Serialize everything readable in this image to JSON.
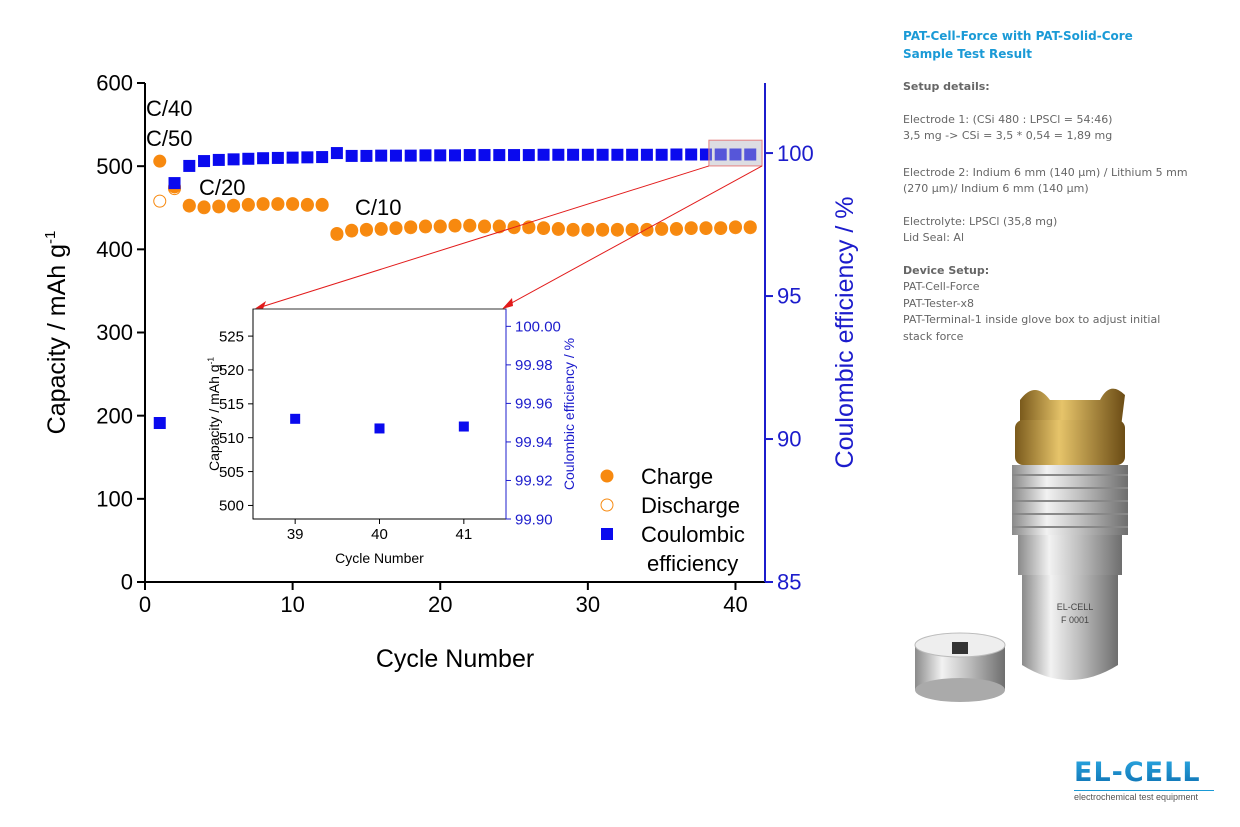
{
  "sidebar": {
    "title1": "PAT-Cell-Force with PAT-Solid-Core",
    "title2": "Sample Test Result",
    "setup_heading": "Setup details:",
    "electrode1_a": "Electrode 1: (CSi 480 : LPSCl = 54:46)",
    "electrode1_b": "3,5 mg -> CSi = 3,5 * 0,54 = 1,89 mg",
    "electrode2_a": "Electrode 2: Indium 6 mm (140 µm) / Lithium 5 mm",
    "electrode2_b": "(270 µm)/ Indium 6 mm (140 µm)",
    "electrolyte": "Electrolyte: LPSCl (35,8 mg)",
    "lid_seal": "Lid Seal: Al",
    "device_heading": "Device Setup:",
    "device1": "PAT-Cell-Force",
    "device2": "PAT-Tester-x8",
    "device3": "PAT-Terminal-1 inside glove box to adjust initial",
    "device4": "stack force"
  },
  "product_label": {
    "brand": "EL-CELL",
    "serial": "F 0001"
  },
  "logo": {
    "name": "EL-CELL",
    "tagline": "electrochemical test equipment",
    "color": "#1a9ad6"
  },
  "chart_data": [
    {
      "type": "scatter",
      "xlabel": "Cycle Number",
      "ylabel": "Capacity / mAh g",
      "ylabel_sup": "-1",
      "y2label": "Coulombic efficiency / %",
      "xlim": [
        0,
        42
      ],
      "ylim": [
        0,
        600
      ],
      "y2lim": [
        85,
        102.45
      ],
      "xticks": [
        0,
        10,
        20,
        30,
        40
      ],
      "yticks": [
        0,
        100,
        200,
        300,
        400,
        500,
        600
      ],
      "y2ticks": [
        85,
        90,
        95,
        100
      ],
      "grid": false,
      "legend_position": "bottom-right",
      "legend": [
        "Charge",
        "Discharge",
        "Coulombic",
        "efficiency"
      ],
      "annotations": [
        "C/40",
        "C/50",
        "C/20",
        "C/10"
      ],
      "colors": {
        "charge": "#f7890f",
        "discharge": "#f7890f",
        "ce": "#0a0aee",
        "axis2": "#1c1ccc",
        "arrow": "#e21b1b"
      },
      "x": [
        1,
        2,
        3,
        4,
        5,
        6,
        7,
        8,
        9,
        10,
        11,
        12,
        13,
        14,
        15,
        16,
        17,
        18,
        19,
        20,
        21,
        22,
        23,
        24,
        25,
        26,
        27,
        28,
        29,
        30,
        31,
        32,
        33,
        34,
        35,
        36,
        37,
        38,
        39,
        40,
        41
      ],
      "series": [
        {
          "name": "Charge",
          "marker": "filled-circle",
          "values": [
            506,
            475,
            453,
            451,
            452,
            453,
            454,
            455,
            455,
            455,
            454,
            454,
            419,
            423,
            424,
            425,
            426,
            427,
            428,
            428,
            429,
            429,
            428,
            428,
            427,
            427,
            426,
            425,
            424,
            424,
            424,
            424,
            424,
            424,
            425,
            425,
            426,
            426,
            426,
            427,
            427
          ]
        },
        {
          "name": "Discharge",
          "marker": "open-circle",
          "values": [
            458,
            473,
            452,
            450,
            451,
            452,
            453,
            454,
            454,
            454,
            453,
            453,
            418,
            422,
            423,
            424,
            425,
            426,
            427,
            427,
            428,
            428,
            427,
            427,
            426,
            426,
            425,
            424,
            423,
            423,
            423,
            423,
            423,
            423,
            424,
            424,
            425,
            425,
            425,
            426,
            426
          ]
        },
        {
          "name": "Coulombic efficiency",
          "axis": "right",
          "marker": "square",
          "values": [
            90.56,
            98.95,
            99.55,
            99.72,
            99.76,
            99.78,
            99.8,
            99.82,
            99.83,
            99.84,
            99.85,
            99.86,
            100.0,
            99.9,
            99.9,
            99.91,
            99.91,
            99.91,
            99.92,
            99.92,
            99.92,
            99.93,
            99.93,
            99.93,
            99.93,
            99.93,
            99.94,
            99.94,
            99.94,
            99.94,
            99.94,
            99.94,
            99.94,
            99.94,
            99.94,
            99.95,
            99.95,
            99.95,
            99.95,
            99.95,
            99.95
          ]
        }
      ]
    },
    {
      "type": "scatter",
      "inset": true,
      "xlabel": "Cycle Number",
      "ylabel": "Capacity / mAh g",
      "ylabel_sup": "-1",
      "y2label": "Coulombic efficiency / %",
      "xlim": [
        38.5,
        41.5
      ],
      "ylim": [
        498,
        529
      ],
      "y2lim": [
        99.9,
        100.009
      ],
      "xticks": [
        39,
        40,
        41
      ],
      "yticks": [
        500,
        505,
        510,
        515,
        520,
        525
      ],
      "y2ticks": [
        "99.90",
        "99.92",
        "99.94",
        "99.96",
        "99.98",
        "100.00"
      ],
      "x": [
        39,
        40,
        41
      ],
      "series": [
        {
          "name": "Coulombic efficiency",
          "axis": "right",
          "marker": "square",
          "values": [
            99.952,
            99.947,
            99.948
          ]
        }
      ]
    }
  ]
}
